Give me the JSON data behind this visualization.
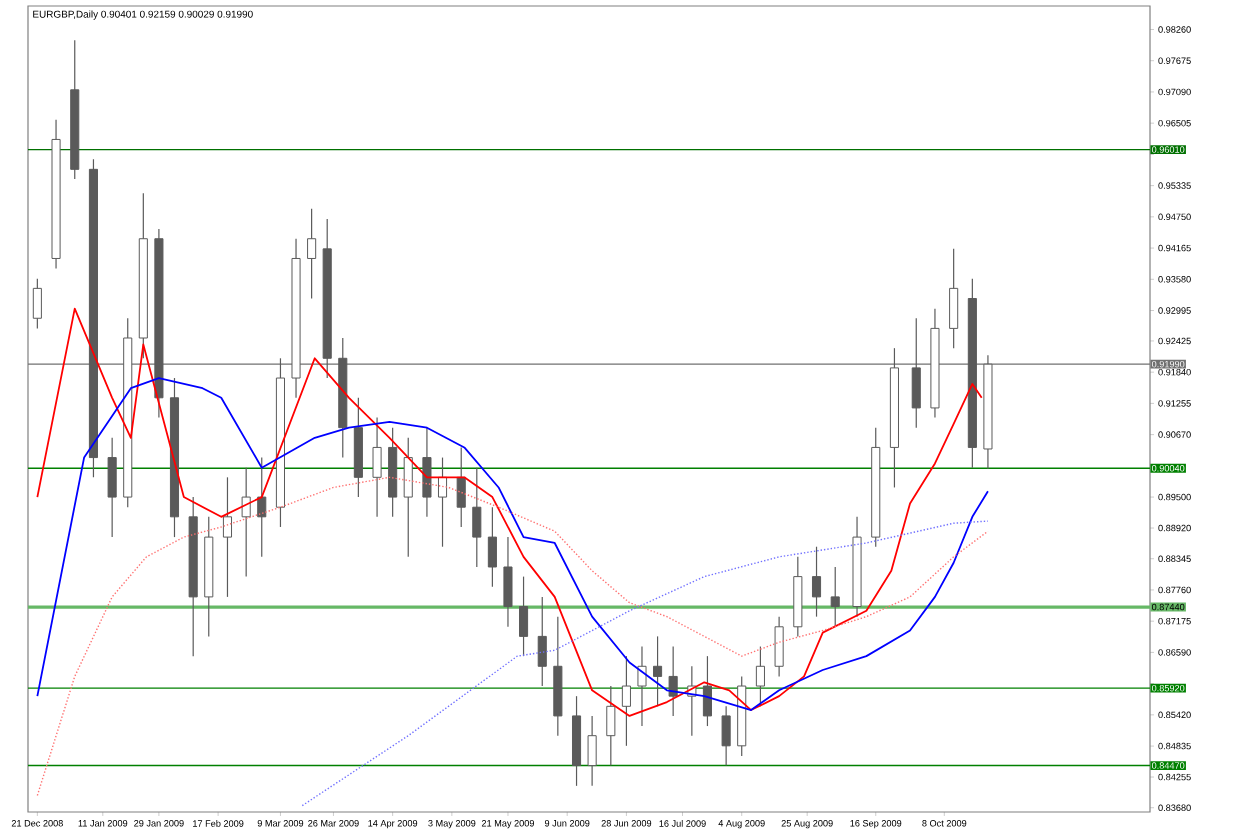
{
  "chart_data": {
    "type": "candlestick",
    "title": "EURGBP,Daily  0.90401 0.92159 0.90029 0.91990",
    "color": "#5a5a5a",
    "x": [
      "2008-12-21",
      "2008-12-27",
      "2009-01-02",
      "2009-01-08",
      "2009-01-14",
      "2009-01-19",
      "2009-01-24",
      "2009-01-29",
      "2009-02-03",
      "2009-02-09",
      "2009-02-14",
      "2009-02-20",
      "2009-02-26",
      "2009-03-03",
      "2009-03-09",
      "2009-03-14",
      "2009-03-19",
      "2009-03-24",
      "2009-03-29",
      "2009-04-03",
      "2009-04-09",
      "2009-04-14",
      "2009-04-19",
      "2009-04-25",
      "2009-04-30",
      "2009-05-06",
      "2009-05-11",
      "2009-05-16",
      "2009-05-21",
      "2009-05-26",
      "2009-06-01",
      "2009-06-06",
      "2009-06-12",
      "2009-06-17",
      "2009-06-23",
      "2009-06-28",
      "2009-07-03",
      "2009-07-08",
      "2009-07-13",
      "2009-07-19",
      "2009-07-24",
      "2009-07-30",
      "2009-08-04",
      "2009-08-10",
      "2009-08-16",
      "2009-08-22",
      "2009-08-28",
      "2009-09-03",
      "2009-09-10",
      "2009-09-16",
      "2009-09-22",
      "2009-09-29",
      "2009-10-05",
      "2009-10-11",
      "2009-10-17",
      "2009-10-22"
    ],
    "ohlc": [
      [
        0.9285,
        0.9359,
        0.9266,
        0.9341
      ],
      [
        0.9397,
        0.9657,
        0.9378,
        0.962
      ],
      [
        0.9713,
        0.9806,
        0.9546,
        0.9564
      ],
      [
        0.9564,
        0.9583,
        0.8987,
        0.9024
      ],
      [
        0.9024,
        0.9061,
        0.8875,
        0.895
      ],
      [
        0.895,
        0.9285,
        0.8931,
        0.9248
      ],
      [
        0.9248,
        0.9519,
        0.921,
        0.9434
      ],
      [
        0.9434,
        0.9452,
        0.9099,
        0.9136
      ],
      [
        0.9136,
        0.9173,
        0.8875,
        0.8913
      ],
      [
        0.8913,
        0.895,
        0.8652,
        0.8763
      ],
      [
        0.8763,
        0.8913,
        0.8689,
        0.8875
      ],
      [
        0.8875,
        0.8987,
        0.8763,
        0.8913
      ],
      [
        0.8913,
        0.9005,
        0.8801,
        0.895
      ],
      [
        0.895,
        0.9024,
        0.8838,
        0.8913
      ],
      [
        0.8931,
        0.921,
        0.8894,
        0.9173
      ],
      [
        0.9173,
        0.9434,
        0.9136,
        0.9397
      ],
      [
        0.9397,
        0.949,
        0.9322,
        0.9434
      ],
      [
        0.9415,
        0.9471,
        0.9173,
        0.921
      ],
      [
        0.921,
        0.9248,
        0.9024,
        0.908
      ],
      [
        0.908,
        0.9136,
        0.895,
        0.8987
      ],
      [
        0.8987,
        0.9099,
        0.8913,
        0.9043
      ],
      [
        0.9043,
        0.908,
        0.8913,
        0.895
      ],
      [
        0.895,
        0.9061,
        0.8838,
        0.9024
      ],
      [
        0.9024,
        0.908,
        0.8913,
        0.895
      ],
      [
        0.895,
        0.9024,
        0.8857,
        0.8987
      ],
      [
        0.8987,
        0.9043,
        0.8894,
        0.8931
      ],
      [
        0.8931,
        0.9005,
        0.8819,
        0.8875
      ],
      [
        0.8875,
        0.8931,
        0.8782,
        0.8819
      ],
      [
        0.8819,
        0.8875,
        0.8707,
        0.8745
      ],
      [
        0.8745,
        0.8801,
        0.8652,
        0.8689
      ],
      [
        0.8689,
        0.8763,
        0.8596,
        0.8633
      ],
      [
        0.8633,
        0.8726,
        0.8503,
        0.854
      ],
      [
        0.854,
        0.8577,
        0.8409,
        0.8447
      ],
      [
        0.8447,
        0.854,
        0.8409,
        0.8503
      ],
      [
        0.8503,
        0.8596,
        0.8447,
        0.8558
      ],
      [
        0.8558,
        0.8652,
        0.8484,
        0.8596
      ],
      [
        0.8596,
        0.867,
        0.8521,
        0.8633
      ],
      [
        0.8633,
        0.8689,
        0.8558,
        0.8614
      ],
      [
        0.8614,
        0.867,
        0.854,
        0.8577
      ],
      [
        0.8577,
        0.8633,
        0.8503,
        0.8596
      ],
      [
        0.8596,
        0.8652,
        0.8521,
        0.854
      ],
      [
        0.854,
        0.8558,
        0.8447,
        0.8484
      ],
      [
        0.8484,
        0.8614,
        0.8465,
        0.8596
      ],
      [
        0.8596,
        0.867,
        0.8558,
        0.8633
      ],
      [
        0.8633,
        0.8726,
        0.8614,
        0.8707
      ],
      [
        0.8707,
        0.8838,
        0.8689,
        0.8801
      ],
      [
        0.8801,
        0.8857,
        0.8726,
        0.8763
      ],
      [
        0.8763,
        0.8819,
        0.8707,
        0.8745
      ],
      [
        0.8745,
        0.8913,
        0.8726,
        0.8875
      ],
      [
        0.8875,
        0.908,
        0.8857,
        0.9043
      ],
      [
        0.9043,
        0.9229,
        0.8968,
        0.9192
      ],
      [
        0.9192,
        0.9285,
        0.908,
        0.9117
      ],
      [
        0.9117,
        0.9303,
        0.9099,
        0.9266
      ],
      [
        0.9266,
        0.9415,
        0.9229,
        0.9341
      ],
      [
        0.9322,
        0.9359,
        0.9005,
        0.9043
      ],
      [
        0.90401,
        0.92159,
        0.90029,
        0.9199
      ]
    ],
    "series": [
      {
        "type": "line",
        "color": "#ff0000",
        "line_style": "solid",
        "x": [
          "2008-12-21",
          "2009-01-02",
          "2009-01-14",
          "2009-01-20",
          "2009-01-24",
          "2009-02-06",
          "2009-02-18",
          "2009-03-03",
          "2009-03-20",
          "2009-03-31",
          "2009-04-13",
          "2009-04-25",
          "2009-05-07",
          "2009-05-16",
          "2009-05-26",
          "2009-06-05",
          "2009-06-17",
          "2009-06-29",
          "2009-07-11",
          "2009-07-23",
          "2009-07-31",
          "2009-08-07",
          "2009-08-16",
          "2009-08-24",
          "2009-08-30",
          "2009-09-13",
          "2009-09-21",
          "2009-09-27",
          "2009-10-05",
          "2009-10-11",
          "2009-10-17",
          "2009-10-20"
        ],
        "values": [
          0.895,
          0.9303,
          0.9136,
          0.9061,
          0.9236,
          0.895,
          0.8913,
          0.895,
          0.921,
          0.9136,
          0.9061,
          0.8987,
          0.8987,
          0.895,
          0.8838,
          0.8763,
          0.8588,
          0.854,
          0.8566,
          0.8603,
          0.8588,
          0.8551,
          0.8577,
          0.8614,
          0.8696,
          0.8737,
          0.8812,
          0.8938,
          0.9013,
          0.9087,
          0.9162,
          0.9136
        ]
      },
      {
        "type": "line",
        "color": "#0000ff",
        "line_style": "solid",
        "x": [
          "2008-12-21",
          "2009-01-05",
          "2009-01-20",
          "2009-01-29",
          "2009-02-12",
          "2009-02-18",
          "2009-03-03",
          "2009-03-20",
          "2009-03-31",
          "2009-04-13",
          "2009-04-25",
          "2009-05-07",
          "2009-05-18",
          "2009-05-26",
          "2009-06-05",
          "2009-06-17",
          "2009-06-29",
          "2009-07-11",
          "2009-07-23",
          "2009-08-07",
          "2009-08-16",
          "2009-08-30",
          "2009-09-13",
          "2009-09-27",
          "2009-10-05",
          "2009-10-11",
          "2009-10-17",
          "2009-10-22"
        ],
        "values": [
          0.8577,
          0.9024,
          0.9154,
          0.9173,
          0.9154,
          0.9136,
          0.9005,
          0.9061,
          0.908,
          0.9091,
          0.908,
          0.9043,
          0.8968,
          0.8875,
          0.8864,
          0.8726,
          0.864,
          0.8588,
          0.8577,
          0.8551,
          0.8588,
          0.8626,
          0.8652,
          0.87,
          0.8763,
          0.8827,
          0.8913,
          0.8961
        ]
      },
      {
        "type": "line",
        "color": "#ff7070",
        "line_style": "dotted",
        "x": [
          "2008-12-21",
          "2009-01-02",
          "2009-01-14",
          "2009-01-25",
          "2009-02-06",
          "2009-02-18",
          "2009-03-09",
          "2009-03-26",
          "2009-04-13",
          "2009-05-02",
          "2009-05-18",
          "2009-06-05",
          "2009-06-17",
          "2009-06-29",
          "2009-07-11",
          "2009-07-23",
          "2009-08-04",
          "2009-08-16",
          "2009-08-30",
          "2009-09-13",
          "2009-09-27",
          "2009-10-11",
          "2009-10-22"
        ],
        "values": [
          0.8391,
          0.8614,
          0.8763,
          0.8838,
          0.8875,
          0.8894,
          0.8931,
          0.8968,
          0.8987,
          0.8968,
          0.8931,
          0.8886,
          0.8812,
          0.8752,
          0.8726,
          0.8689,
          0.8652,
          0.8678,
          0.87,
          0.8726,
          0.8763,
          0.8838,
          0.8886
        ]
      },
      {
        "type": "line",
        "color": "#7070ff",
        "line_style": "dotted",
        "x": [
          "2009-03-16",
          "2009-04-19",
          "2009-05-24",
          "2009-06-05",
          "2009-06-29",
          "2009-07-23",
          "2009-08-16",
          "2009-09-13",
          "2009-10-11",
          "2009-10-22"
        ],
        "values": [
          0.8372,
          0.8503,
          0.8652,
          0.8663,
          0.8737,
          0.8801,
          0.8838,
          0.8864,
          0.8901,
          0.8905
        ]
      }
    ],
    "xlim": [
      "2008-12-18",
      "2009-12-13"
    ],
    "ylim": [
      0.836,
      0.987
    ],
    "xticks": [
      {
        "value": "2008-12-21",
        "label": "21 Dec 2008"
      },
      {
        "value": "2009-01-11",
        "label": "11 Jan 2009"
      },
      {
        "value": "2009-01-29",
        "label": "29 Jan 2009"
      },
      {
        "value": "2009-02-17",
        "label": "17 Feb 2009"
      },
      {
        "value": "2009-03-09",
        "label": "9 Mar 2009"
      },
      {
        "value": "2009-03-26",
        "label": "26 Mar 2009"
      },
      {
        "value": "2009-04-14",
        "label": "14 Apr 2009"
      },
      {
        "value": "2009-05-03",
        "label": "3 May 2009"
      },
      {
        "value": "2009-05-21",
        "label": "21 May 2009"
      },
      {
        "value": "2009-06-09",
        "label": "9 Jun 2009"
      },
      {
        "value": "2009-06-28",
        "label": "28 Jun 2009"
      },
      {
        "value": "2009-07-16",
        "label": "16 Jul 2009"
      },
      {
        "value": "2009-08-04",
        "label": "4 Aug 2009"
      },
      {
        "value": "2009-08-25",
        "label": "25 Aug 2009"
      },
      {
        "value": "2009-09-16",
        "label": "16 Sep 2009"
      },
      {
        "value": "2009-10-08",
        "label": "8 Oct 2009"
      }
    ],
    "yticks": [
      {
        "value": 0.9826,
        "label": "0.98260"
      },
      {
        "value": 0.97675,
        "label": "0.97675"
      },
      {
        "value": 0.9709,
        "label": "0.97090"
      },
      {
        "value": 0.96505,
        "label": "0.96505"
      },
      {
        "value": 0.9592,
        "label": null
      },
      {
        "value": 0.95335,
        "label": "0.95335"
      },
      {
        "value": 0.9475,
        "label": "0.94750"
      },
      {
        "value": 0.94165,
        "label": "0.94165"
      },
      {
        "value": 0.9358,
        "label": "0.93580"
      },
      {
        "value": 0.92995,
        "label": "0.92995"
      },
      {
        "value": 0.92425,
        "label": "0.92425"
      },
      {
        "value": 0.9184,
        "label": "0.91840"
      },
      {
        "value": 0.91255,
        "label": "0.91255"
      },
      {
        "value": 0.9067,
        "label": "0.90670"
      },
      {
        "value": 0.90085,
        "label": null
      },
      {
        "value": 0.895,
        "label": "0.89500"
      },
      {
        "value": 0.8892,
        "label": "0.88920"
      },
      {
        "value": 0.88345,
        "label": "0.88345"
      },
      {
        "value": 0.8776,
        "label": "0.87760"
      },
      {
        "value": 0.87175,
        "label": "0.87175"
      },
      {
        "value": 0.8659,
        "label": "0.86590"
      },
      {
        "value": 0.86005,
        "label": null
      },
      {
        "value": 0.8542,
        "label": "0.85420"
      },
      {
        "value": 0.84835,
        "label": "0.84835"
      },
      {
        "value": 0.84255,
        "label": "0.84255"
      },
      {
        "value": 0.8368,
        "label": "0.83680"
      }
    ],
    "ref_lines": [
      {
        "axis": "y",
        "value": 0.9601,
        "label": "0.96010",
        "color": "#007000"
      },
      {
        "axis": "y",
        "value": 0.9199,
        "label": "0.91990",
        "color": "#707070"
      },
      {
        "axis": "y",
        "value": 0.9004,
        "label": "0.90040",
        "color": "#008000"
      },
      {
        "axis": "y",
        "value": 0.8744,
        "label": "0.87440",
        "color": "#66b866"
      },
      {
        "axis": "y",
        "value": 0.8592,
        "label": "0.85920",
        "color": "#008000"
      },
      {
        "axis": "y",
        "value": 0.8447,
        "label": "0.84470",
        "color": "#008000"
      }
    ],
    "grid": false,
    "marker": "none"
  }
}
